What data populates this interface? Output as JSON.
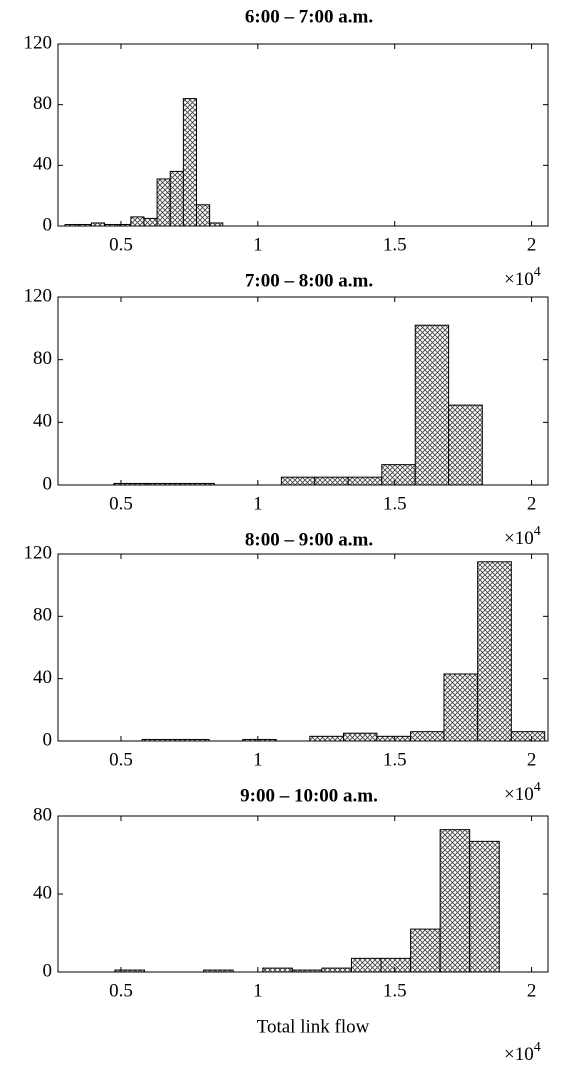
{
  "chart_data": [
    {
      "type": "histogram",
      "title": "6:00 – 7:00 a.m.",
      "color": "#444444",
      "bins": [
        0.296,
        0.344,
        0.392,
        0.44,
        0.488,
        0.536,
        0.584,
        0.632,
        0.68,
        0.728,
        0.776,
        0.824,
        0.872
      ],
      "values": [
        1,
        1,
        2,
        1,
        1,
        6,
        5,
        31,
        36,
        84,
        14,
        2
      ],
      "xlim": [
        0.27,
        2.06
      ],
      "xticks": [
        0.5,
        1,
        1.5,
        2
      ],
      "ylim": [
        0,
        120
      ],
      "yticks": [
        0,
        40,
        80,
        120
      ]
    },
    {
      "type": "histogram",
      "title": "7:00 – 8:00 a.m.",
      "color": "#444444",
      "x_scale_base": "×10",
      "x_scale_exp": "4",
      "bins": [
        0.474,
        0.596,
        0.719,
        0.841,
        0.963,
        1.086,
        1.208,
        1.33,
        1.453,
        1.575,
        1.697,
        1.82
      ],
      "values": [
        1,
        1,
        1,
        0,
        0,
        5,
        5,
        5,
        13,
        102,
        51
      ],
      "xlim": [
        0.27,
        2.06
      ],
      "xticks": [
        0.5,
        1,
        1.5,
        2
      ],
      "ylim": [
        0,
        120
      ],
      "yticks": [
        0,
        40,
        80,
        120
      ]
    },
    {
      "type": "histogram",
      "title": "8:00 – 9:00 a.m.",
      "color": "#444444",
      "x_scale_base": "×10",
      "x_scale_exp": "4",
      "bins": [
        0.577,
        0.7,
        0.822,
        0.945,
        1.067,
        1.19,
        1.313,
        1.435,
        1.558,
        1.68,
        1.803,
        1.926,
        2.048
      ],
      "values": [
        1,
        1,
        0,
        1,
        0,
        3,
        5,
        3,
        6,
        43,
        115,
        6
      ],
      "xlim": [
        0.27,
        2.06
      ],
      "xticks": [
        0.5,
        1,
        1.5,
        2
      ],
      "ylim": [
        0,
        120
      ],
      "yticks": [
        0,
        40,
        80,
        120
      ]
    },
    {
      "type": "histogram",
      "title": "9:00 – 10:00 a.m.",
      "color": "#444444",
      "x_scale_base": "×10",
      "x_scale_exp": "4",
      "x_label": "Total link flow",
      "bins": [
        0.478,
        0.586,
        0.694,
        0.802,
        0.91,
        1.018,
        1.126,
        1.234,
        1.342,
        1.45,
        1.558,
        1.666,
        1.774,
        1.882
      ],
      "values": [
        1,
        0,
        0,
        1,
        0,
        2,
        1,
        2,
        7,
        7,
        22,
        73,
        67
      ],
      "xlim": [
        0.27,
        2.06
      ],
      "xticks": [
        0.5,
        1,
        1.5,
        2
      ],
      "ylim": [
        0,
        80
      ],
      "yticks": [
        0,
        40,
        80
      ]
    },
    {
      "type": "scale-note",
      "x_scale_base": "×10",
      "x_scale_exp": "4"
    }
  ]
}
